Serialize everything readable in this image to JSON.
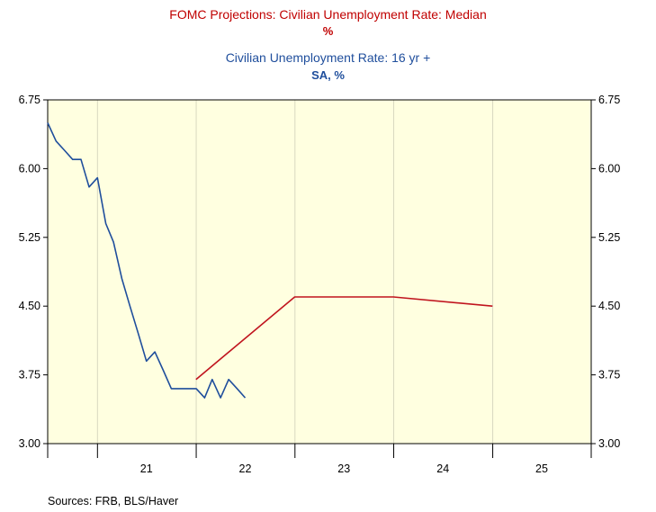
{
  "chart_data": {
    "type": "line",
    "titles": {
      "series1_title": "FOMC Projections: Civilian Unemployment Rate: Median",
      "series1_unit": "%",
      "series2_title": "Civilian Unemployment Rate: 16 yr +",
      "series2_unit": "SA, %"
    },
    "y_ticks": [
      "6.75",
      "6.00",
      "5.25",
      "4.50",
      "3.75",
      "3.00"
    ],
    "ylim": [
      3.0,
      6.75
    ],
    "x_tick_labels": [
      "21",
      "22",
      "23",
      "24",
      "25"
    ],
    "xlim": [
      "2020-07-01",
      "2025-12-31"
    ],
    "grid": "vertical at year boundaries",
    "source": "Sources:  FRB, BLS/Haver",
    "colors": {
      "projection": "#c0141e",
      "actual": "#1f4e9c",
      "plot_background": "#ffffe0"
    },
    "series": [
      {
        "name": "FOMC Projections: Civilian Unemployment Rate: Median",
        "points": [
          {
            "x": "2021-12-31",
            "y": 3.7
          },
          {
            "x": "2022-12-31",
            "y": 4.6
          },
          {
            "x": "2023-12-31",
            "y": 4.6
          },
          {
            "x": "2024-12-31",
            "y": 4.5
          }
        ]
      },
      {
        "name": "Civilian Unemployment Rate: 16 yr +",
        "points": [
          {
            "x": "2020-07-01",
            "y": 6.5
          },
          {
            "x": "2020-08-01",
            "y": 6.3
          },
          {
            "x": "2020-09-01",
            "y": 6.2
          },
          {
            "x": "2020-10-01",
            "y": 6.1
          },
          {
            "x": "2020-11-01",
            "y": 6.1
          },
          {
            "x": "2020-12-01",
            "y": 5.8
          },
          {
            "x": "2021-01-01",
            "y": 5.9
          },
          {
            "x": "2021-02-01",
            "y": 5.4
          },
          {
            "x": "2021-03-01",
            "y": 5.2
          },
          {
            "x": "2021-04-01",
            "y": 4.8
          },
          {
            "x": "2021-05-01",
            "y": 4.5
          },
          {
            "x": "2021-06-01",
            "y": 4.2
          },
          {
            "x": "2021-07-01",
            "y": 3.9
          },
          {
            "x": "2021-08-01",
            "y": 4.0
          },
          {
            "x": "2021-09-01",
            "y": 3.8
          },
          {
            "x": "2021-10-01",
            "y": 3.6
          },
          {
            "x": "2021-11-01",
            "y": 3.6
          },
          {
            "x": "2021-12-01",
            "y": 3.6
          },
          {
            "x": "2022-01-01",
            "y": 3.6
          },
          {
            "x": "2022-02-01",
            "y": 3.5
          },
          {
            "x": "2022-03-01",
            "y": 3.7
          },
          {
            "x": "2022-04-01",
            "y": 3.5
          },
          {
            "x": "2022-05-01",
            "y": 3.7
          },
          {
            "x": "2022-06-01",
            "y": 3.6
          },
          {
            "x": "2022-07-01",
            "y": 3.5
          }
        ]
      }
    ]
  }
}
